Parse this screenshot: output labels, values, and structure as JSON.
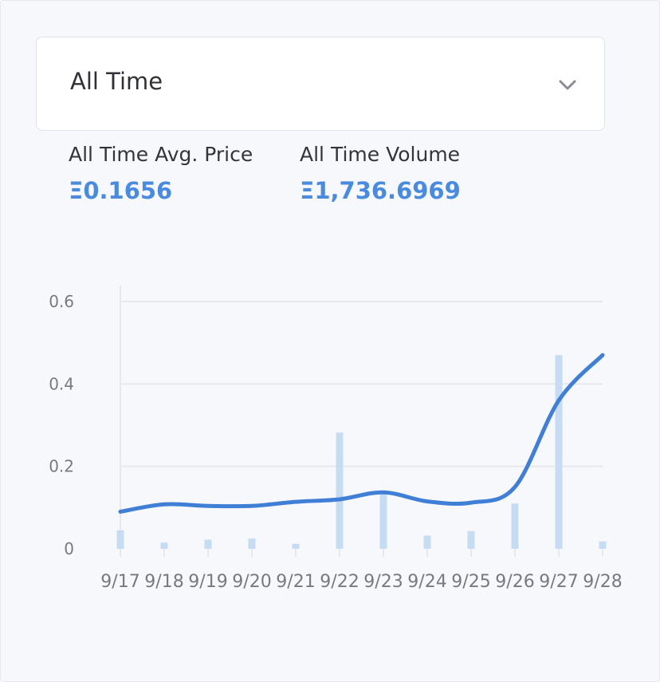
{
  "filter": {
    "selected": "All Time",
    "icon": "chevron-down-icon"
  },
  "stats": {
    "avg_price_label": "All Time Avg. Price",
    "avg_price_value": "Ξ0.1656",
    "volume_label": "All Time Volume",
    "volume_value": "Ξ1,736.6969"
  },
  "colors": {
    "accent": "#4a8be0",
    "line": "#3f7fd6",
    "bar": "#c6dcf3",
    "grid": "#e6e8ee"
  },
  "chart_data": {
    "type": "bar",
    "categories": [
      "9/17",
      "9/18",
      "9/19",
      "9/20",
      "9/21",
      "9/22",
      "9/23",
      "9/24",
      "9/25",
      "9/26",
      "9/27",
      "9/28"
    ],
    "series": [
      {
        "type": "bar",
        "values": [
          0.045,
          0.015,
          0.022,
          0.025,
          0.012,
          0.282,
          0.135,
          0.032,
          0.043,
          0.11,
          0.47,
          0.018
        ]
      },
      {
        "type": "line",
        "values": [
          0.09,
          0.108,
          0.104,
          0.104,
          0.114,
          0.12,
          0.137,
          0.115,
          0.112,
          0.15,
          0.36,
          0.47
        ]
      }
    ],
    "yticks": [
      "0",
      "0.2",
      "0.4",
      "0.6"
    ],
    "ylim": [
      0,
      0.6
    ],
    "grid": true,
    "legend": "none"
  }
}
